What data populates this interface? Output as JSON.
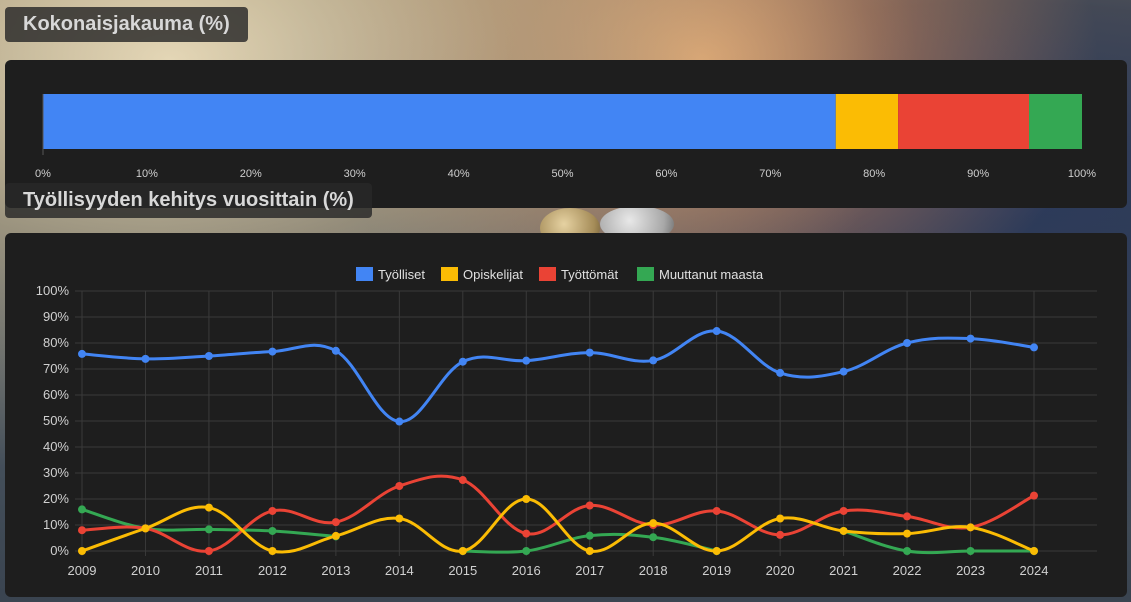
{
  "distribution_title": "Kokonaisjakauma (%)",
  "trend_title": "Työllisyyden kehitys vuosittain (%)",
  "colors": {
    "blue": "#4285f4",
    "yellow": "#fbbc04",
    "red": "#ea4335",
    "green": "#34a853"
  },
  "chart_data": [
    {
      "type": "bar",
      "orientation": "horizontal",
      "stacked": true,
      "title": "Kokonaisjakauma (%)",
      "xlim": [
        0,
        100
      ],
      "x_ticks": [
        "0%",
        "10%",
        "20%",
        "30%",
        "40%",
        "50%",
        "60%",
        "70%",
        "80%",
        "90%",
        "100%"
      ],
      "segments": [
        {
          "color": "#4285f4",
          "value": 76.3
        },
        {
          "color": "#fbbc04",
          "value": 6.0
        },
        {
          "color": "#ea4335",
          "value": 12.6
        },
        {
          "color": "#34a853",
          "value": 5.1
        }
      ],
      "grid": false
    },
    {
      "type": "line",
      "title": "Työllisyyden kehitys vuosittain (%)",
      "categories": [
        "2009",
        "2010",
        "2011",
        "2012",
        "2013",
        "2014",
        "2015",
        "2016",
        "2017",
        "2018",
        "2019",
        "2020",
        "2021",
        "2022",
        "2023",
        "2024"
      ],
      "ylim": [
        0,
        100
      ],
      "y_ticks": [
        "0%",
        "10%",
        "20%",
        "30%",
        "40%",
        "50%",
        "60%",
        "70%",
        "80%",
        "90%",
        "100%"
      ],
      "legend_position": "top",
      "grid": true,
      "series": [
        {
          "name": "Työlliset",
          "color": "#4285f4",
          "values": [
            75.8,
            73.9,
            75.0,
            76.7,
            77.0,
            49.8,
            72.8,
            73.2,
            76.3,
            73.3,
            84.6,
            68.5,
            69.0,
            80.0,
            81.7,
            78.3
          ]
        },
        {
          "name": "Opiskelijat",
          "color": "#fbbc04",
          "values": [
            0,
            8.7,
            16.7,
            0,
            5.8,
            12.5,
            0,
            20.0,
            0,
            10.7,
            0,
            12.5,
            7.7,
            6.7,
            9.1,
            0
          ]
        },
        {
          "name": "Työttömät",
          "color": "#ea4335",
          "values": [
            8.0,
            8.7,
            0,
            15.4,
            11.1,
            25.0,
            27.3,
            6.7,
            17.5,
            10.0,
            15.4,
            6.2,
            15.4,
            13.3,
            9.1,
            21.3
          ]
        },
        {
          "name": "Muuttanut maasta",
          "color": "#34a853",
          "values": [
            16.0,
            8.7,
            8.3,
            7.7,
            5.6,
            null,
            0,
            0,
            5.9,
            5.3,
            0,
            null,
            7.7,
            0,
            0,
            0
          ]
        }
      ]
    }
  ]
}
